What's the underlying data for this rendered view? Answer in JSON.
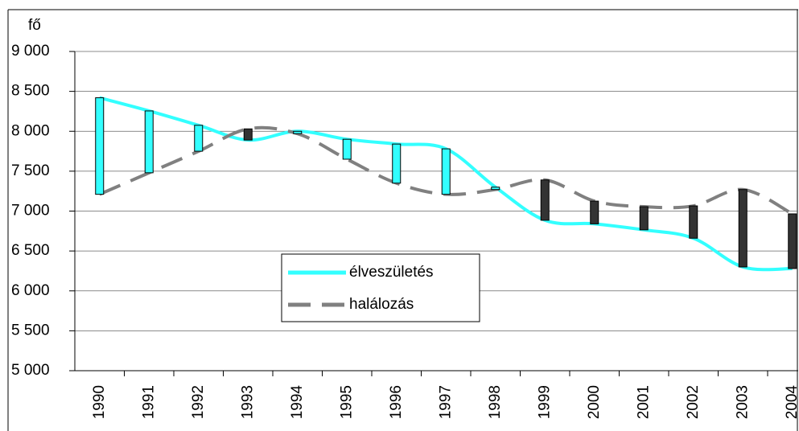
{
  "chart_data": {
    "type": "line",
    "y_label": "fő",
    "categories": [
      "1990",
      "1991",
      "1992",
      "1993",
      "1994",
      "1995",
      "1996",
      "1997",
      "1998",
      "1999",
      "2000",
      "2001",
      "2002",
      "2003",
      "2004"
    ],
    "series": [
      {
        "name": "élveszületés",
        "color": "#33ffff",
        "style": "solid",
        "values": [
          8420,
          8255,
          8075,
          7890,
          8000,
          7900,
          7840,
          7780,
          7300,
          6885,
          6840,
          6765,
          6660,
          6300,
          6280
        ]
      },
      {
        "name": "halálozás",
        "color": "#808080",
        "style": "dashed",
        "values": [
          7210,
          7480,
          7750,
          8030,
          7970,
          7650,
          7350,
          7210,
          7270,
          7390,
          7125,
          7055,
          7065,
          7270,
          6965
        ]
      }
    ],
    "up_color": "#33ffff",
    "down_color": "#333333",
    "ylim": [
      5000,
      9000
    ],
    "yticks": [
      {
        "value": 5000,
        "label": "5 000"
      },
      {
        "value": 5500,
        "label": "5 500"
      },
      {
        "value": 6000,
        "label": "6 000"
      },
      {
        "value": 6500,
        "label": "6 500"
      },
      {
        "value": 7000,
        "label": "7 000"
      },
      {
        "value": 7500,
        "label": "7 500"
      },
      {
        "value": 8000,
        "label": "8 000"
      },
      {
        "value": 8500,
        "label": "8 500"
      },
      {
        "value": 9000,
        "label": "9 000"
      }
    ],
    "grid": true
  }
}
